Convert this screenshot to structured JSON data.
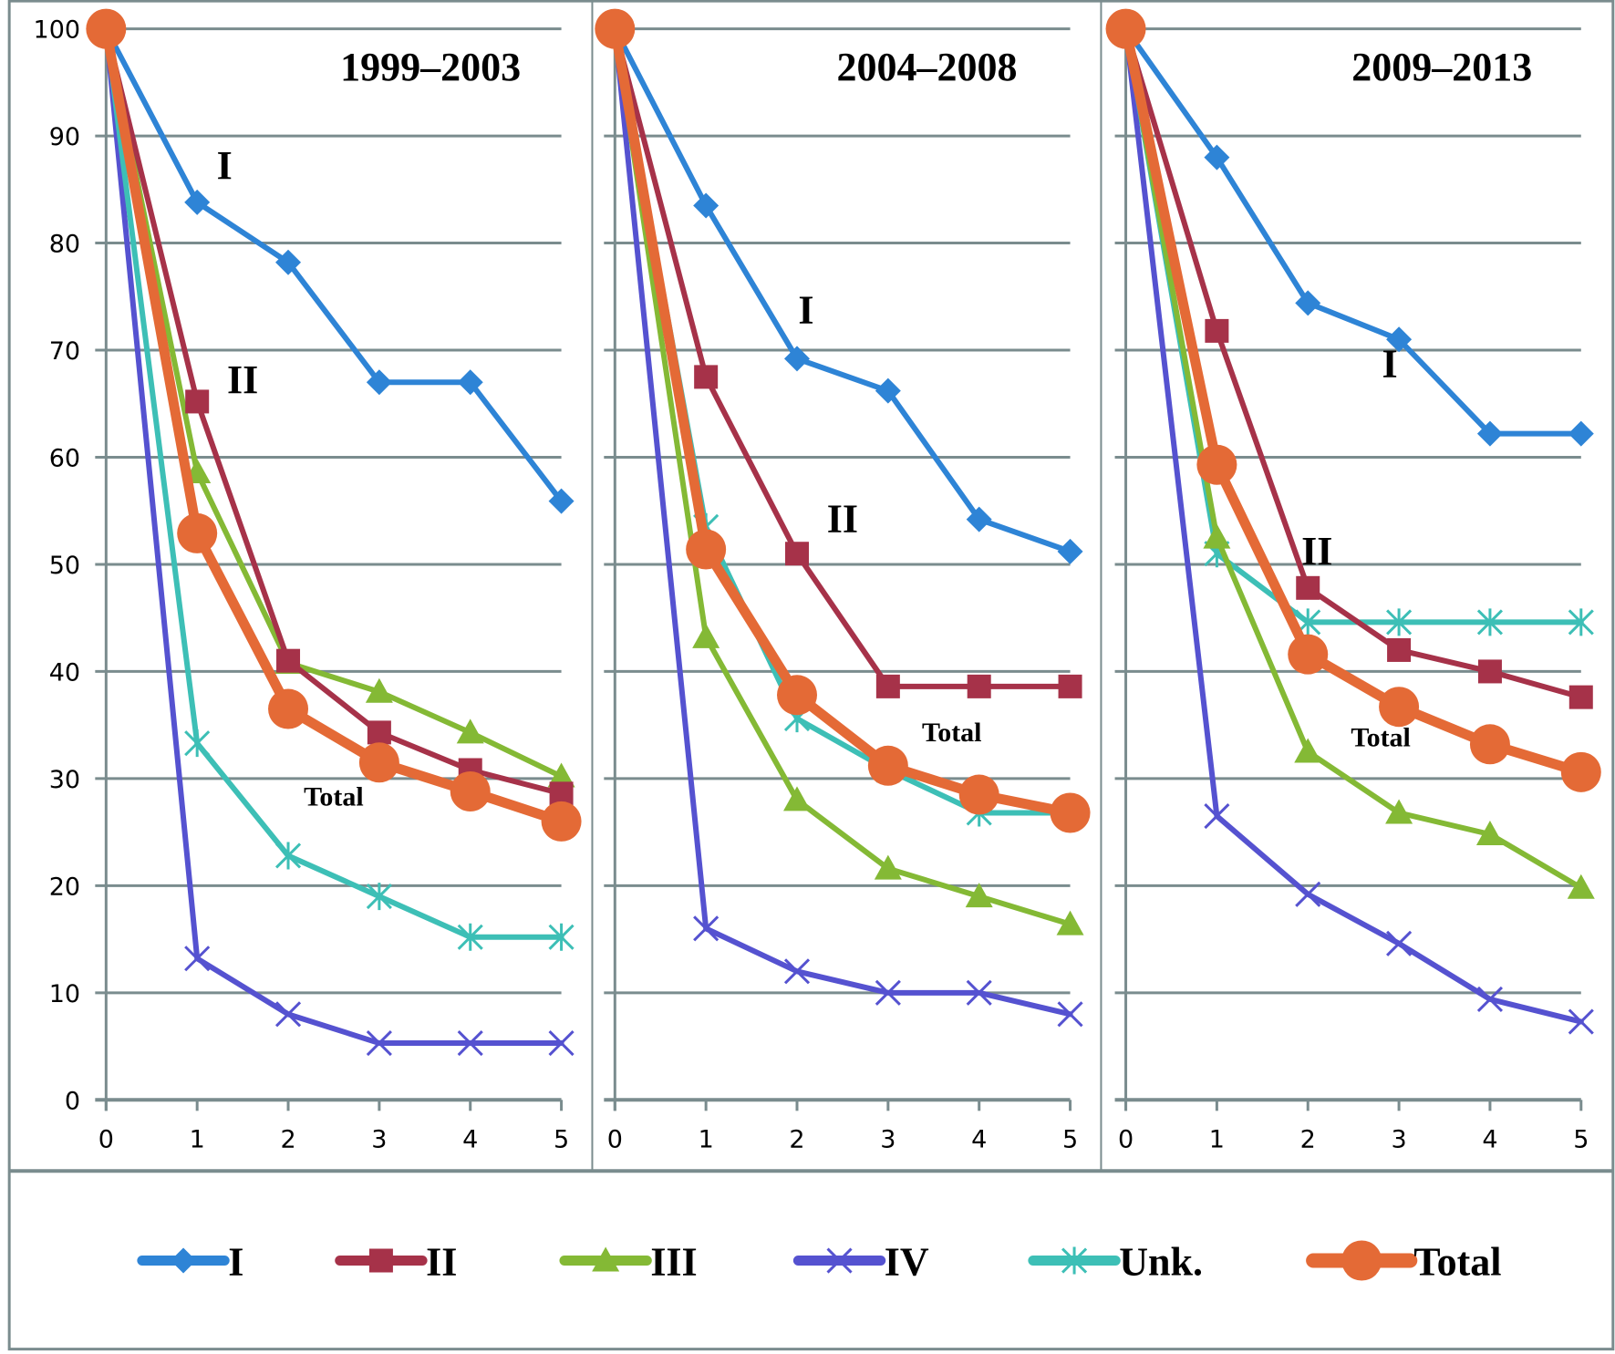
{
  "chart_data": {
    "type": "line",
    "legend_position": "bottom",
    "grid": true,
    "colors": {
      "I": "#2E84D6",
      "II": "#A63249",
      "III": "#84B935",
      "IV": "#5552D0",
      "Unk.": "#3DBFB6",
      "Total": "#E46A36",
      "grid": "#7A8C8E",
      "frame": "#7A8C8E"
    },
    "series_meta": [
      {
        "name": "I",
        "marker": "diamond"
      },
      {
        "name": "II",
        "marker": "square"
      },
      {
        "name": "III",
        "marker": "triangle"
      },
      {
        "name": "IV",
        "marker": "x"
      },
      {
        "name": "Unk.",
        "marker": "star"
      },
      {
        "name": "Total",
        "marker": "circle"
      }
    ],
    "x": [
      0,
      1,
      2,
      3,
      4,
      5
    ],
    "xticks": [
      "0",
      "1",
      "2",
      "3",
      "4",
      "5"
    ],
    "yticks": [
      "0",
      "10",
      "20",
      "30",
      "40",
      "50",
      "60",
      "70",
      "80",
      "90",
      "100"
    ],
    "ylim": [
      0,
      100
    ],
    "xlim": [
      0,
      5
    ],
    "xlabel": "",
    "ylabel": "",
    "panels": [
      {
        "title": "1999–2003",
        "series": [
          {
            "name": "I",
            "values": [
              100,
              83.8,
              78.2,
              67.0,
              67.0,
              55.9
            ]
          },
          {
            "name": "II",
            "values": [
              100,
              65.2,
              41.0,
              34.3,
              30.8,
              28.6
            ]
          },
          {
            "name": "III",
            "values": [
              100,
              58.6,
              40.8,
              38.1,
              34.3,
              30.2
            ]
          },
          {
            "name": "IV",
            "values": [
              100,
              13.2,
              8.0,
              5.3,
              5.3,
              5.3
            ]
          },
          {
            "name": "Unk.",
            "values": [
              100,
              33.3,
              22.8,
              19.0,
              15.2,
              15.2
            ]
          },
          {
            "name": "Total",
            "values": [
              100,
              52.9,
              36.5,
              31.5,
              28.8,
              26.0
            ]
          }
        ],
        "annotations": [
          {
            "text": "I",
            "at_x": 1.3,
            "at_y": 86
          },
          {
            "text": "II",
            "at_x": 1.5,
            "at_y": 66
          },
          {
            "text": "Total",
            "at_x": 2.5,
            "at_y": 27.5
          }
        ]
      },
      {
        "title": "2004–2008",
        "series": [
          {
            "name": "I",
            "values": [
              100,
              83.5,
              69.2,
              66.2,
              54.2,
              51.2
            ]
          },
          {
            "name": "II",
            "values": [
              100,
              67.5,
              51.0,
              38.6,
              38.6,
              38.6
            ]
          },
          {
            "name": "III",
            "values": [
              100,
              43.2,
              28.0,
              21.6,
              19.0,
              16.4
            ]
          },
          {
            "name": "IV",
            "values": [
              100,
              16.0,
              12.0,
              10.0,
              10.0,
              8.0
            ]
          },
          {
            "name": "Unk.",
            "values": [
              100,
              53.5,
              35.6,
              30.8,
              26.8,
              26.8
            ]
          },
          {
            "name": "Total",
            "values": [
              100,
              51.4,
              37.8,
              31.2,
              28.5,
              26.8
            ]
          }
        ],
        "annotations": [
          {
            "text": "I",
            "at_x": 2.1,
            "at_y": 72.5
          },
          {
            "text": "II",
            "at_x": 2.5,
            "at_y": 53
          },
          {
            "text": "Total",
            "at_x": 3.7,
            "at_y": 33.5
          }
        ]
      },
      {
        "title": "2009–2013",
        "series": [
          {
            "name": "I",
            "values": [
              100,
              88.0,
              74.4,
              71.0,
              62.2,
              62.2
            ]
          },
          {
            "name": "II",
            "values": [
              100,
              71.8,
              47.8,
              42.0,
              40.0,
              37.6
            ]
          },
          {
            "name": "III",
            "values": [
              100,
              52.5,
              32.5,
              26.8,
              24.8,
              19.8
            ]
          },
          {
            "name": "IV",
            "values": [
              100,
              26.5,
              19.2,
              14.6,
              9.4,
              7.3
            ]
          },
          {
            "name": "Unk.",
            "values": [
              100,
              51.0,
              44.6,
              44.6,
              44.6,
              44.6
            ]
          },
          {
            "name": "Total",
            "values": [
              100,
              59.3,
              41.6,
              36.7,
              33.2,
              30.6
            ]
          }
        ],
        "annotations": [
          {
            "text": "I",
            "at_x": 2.9,
            "at_y": 67.5
          },
          {
            "text": "II",
            "at_x": 2.1,
            "at_y": 50
          },
          {
            "text": "Total",
            "at_x": 2.8,
            "at_y": 33
          }
        ]
      }
    ],
    "legend": [
      "I",
      "II",
      "III",
      "IV",
      "Unk.",
      "Total"
    ]
  }
}
